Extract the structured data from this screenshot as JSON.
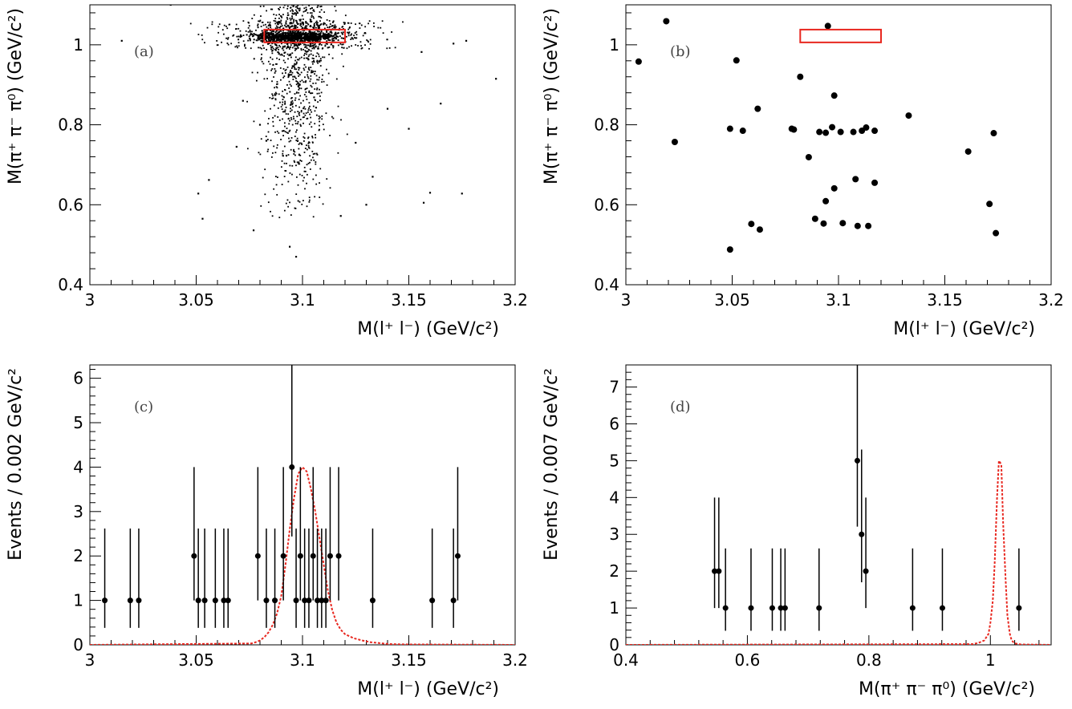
{
  "chart_data": [
    {
      "id": "a",
      "type": "scatter",
      "panel_label": "(a)",
      "xlabel": "M(l⁺ l⁻) (GeV/c²)",
      "ylabel": "M(π⁺ π⁻ π⁰) (GeV/c²)",
      "xlim": [
        3.0,
        3.2
      ],
      "ylim": [
        0.4,
        1.1
      ],
      "xticks": [
        "3",
        "3.05",
        "3.1",
        "3.15",
        "3.2"
      ],
      "yticks": [
        "0.4",
        "0.6",
        "0.8",
        "1"
      ],
      "signal_box": {
        "x": [
          3.082,
          3.12
        ],
        "y": [
          1.006,
          1.038
        ],
        "color": "#e8271f"
      },
      "scatter_description": "dense band of events around M(l+l-) ~ 3.097 and M(3pi) ~ 1.02 plus vertical band down to 0.47",
      "dense_core": {
        "x_center": 3.097,
        "x_sigma": 0.008,
        "y_range": [
          0.56,
          1.1
        ],
        "horizontal_band_y": [
          0.99,
          1.06
        ],
        "horizontal_band_x": [
          3.04,
          3.16
        ]
      },
      "sparse_points": [
        {
          "x": 3.038,
          "y": 1.1
        },
        {
          "x": 3.015,
          "y": 1.01
        },
        {
          "x": 3.191,
          "y": 0.915
        },
        {
          "x": 3.072,
          "y": 0.86
        },
        {
          "x": 3.08,
          "y": 0.8
        },
        {
          "x": 3.083,
          "y": 0.76
        },
        {
          "x": 3.069,
          "y": 0.745
        },
        {
          "x": 3.051,
          "y": 0.628
        },
        {
          "x": 3.053,
          "y": 0.565
        },
        {
          "x": 3.056,
          "y": 0.662
        },
        {
          "x": 3.077,
          "y": 0.536
        },
        {
          "x": 3.094,
          "y": 0.495
        },
        {
          "x": 3.097,
          "y": 0.47
        },
        {
          "x": 3.157,
          "y": 0.605
        },
        {
          "x": 3.16,
          "y": 0.63
        },
        {
          "x": 3.175,
          "y": 0.628
        },
        {
          "x": 3.165,
          "y": 0.853
        },
        {
          "x": 3.14,
          "y": 0.84
        },
        {
          "x": 3.15,
          "y": 0.79
        },
        {
          "x": 3.177,
          "y": 1.01
        },
        {
          "x": 3.171,
          "y": 1.003
        },
        {
          "x": 3.156,
          "y": 0.982
        },
        {
          "x": 3.13,
          "y": 0.6
        },
        {
          "x": 3.118,
          "y": 0.572
        },
        {
          "x": 3.125,
          "y": 0.755
        },
        {
          "x": 3.133,
          "y": 0.67
        }
      ]
    },
    {
      "id": "b",
      "type": "scatter",
      "panel_label": "(b)",
      "xlabel": "M(l⁺ l⁻) (GeV/c²)",
      "ylabel": "M(π⁺ π⁻ π⁰) (GeV/c²)",
      "xlim": [
        3.0,
        3.2
      ],
      "ylim": [
        0.4,
        1.1
      ],
      "xticks": [
        "3",
        "3.05",
        "3.1",
        "3.15",
        "3.2"
      ],
      "yticks": [
        "0.4",
        "0.6",
        "0.8",
        "1"
      ],
      "signal_box": {
        "x": [
          3.082,
          3.12
        ],
        "y": [
          1.006,
          1.038
        ],
        "color": "#e8271f"
      },
      "points": [
        {
          "x": 3.006,
          "y": 0.958
        },
        {
          "x": 3.019,
          "y": 1.059
        },
        {
          "x": 3.023,
          "y": 0.757
        },
        {
          "x": 3.049,
          "y": 0.488
        },
        {
          "x": 3.049,
          "y": 0.79
        },
        {
          "x": 3.052,
          "y": 0.961
        },
        {
          "x": 3.055,
          "y": 0.785
        },
        {
          "x": 3.059,
          "y": 0.552
        },
        {
          "x": 3.062,
          "y": 0.84
        },
        {
          "x": 3.063,
          "y": 0.538
        },
        {
          "x": 3.078,
          "y": 0.79
        },
        {
          "x": 3.079,
          "y": 0.788
        },
        {
          "x": 3.082,
          "y": 0.92
        },
        {
          "x": 3.086,
          "y": 0.719
        },
        {
          "x": 3.089,
          "y": 0.565
        },
        {
          "x": 3.091,
          "y": 0.782
        },
        {
          "x": 3.093,
          "y": 0.553
        },
        {
          "x": 3.094,
          "y": 0.78
        },
        {
          "x": 3.094,
          "y": 0.609
        },
        {
          "x": 3.095,
          "y": 1.047
        },
        {
          "x": 3.097,
          "y": 0.794
        },
        {
          "x": 3.098,
          "y": 0.641
        },
        {
          "x": 3.098,
          "y": 0.873
        },
        {
          "x": 3.101,
          "y": 0.782
        },
        {
          "x": 3.102,
          "y": 0.554
        },
        {
          "x": 3.107,
          "y": 0.782
        },
        {
          "x": 3.108,
          "y": 0.664
        },
        {
          "x": 3.109,
          "y": 0.547
        },
        {
          "x": 3.111,
          "y": 0.785
        },
        {
          "x": 3.113,
          "y": 0.793
        },
        {
          "x": 3.114,
          "y": 0.547
        },
        {
          "x": 3.117,
          "y": 0.785
        },
        {
          "x": 3.117,
          "y": 0.655
        },
        {
          "x": 3.133,
          "y": 0.823
        },
        {
          "x": 3.161,
          "y": 0.733
        },
        {
          "x": 3.171,
          "y": 0.602
        },
        {
          "x": 3.173,
          "y": 0.779
        },
        {
          "x": 3.174,
          "y": 0.529
        }
      ]
    },
    {
      "id": "c",
      "type": "errorbar",
      "panel_label": "(c)",
      "xlabel": "M(l⁺ l⁻) (GeV/c²)",
      "ylabel": "Events / 0.002 GeV/c²",
      "xlim": [
        3.0,
        3.2
      ],
      "ylim": [
        0,
        6.3
      ],
      "xticks": [
        "3",
        "3.05",
        "3.1",
        "3.15",
        "3.2"
      ],
      "yticks": [
        "0",
        "1",
        "2",
        "3",
        "4",
        "5",
        "6"
      ],
      "bin_width": 0.002,
      "points": [
        {
          "x": 3.007,
          "y": 1
        },
        {
          "x": 3.019,
          "y": 1
        },
        {
          "x": 3.023,
          "y": 1
        },
        {
          "x": 3.049,
          "y": 2
        },
        {
          "x": 3.051,
          "y": 1
        },
        {
          "x": 3.054,
          "y": 1
        },
        {
          "x": 3.059,
          "y": 1
        },
        {
          "x": 3.063,
          "y": 1
        },
        {
          "x": 3.065,
          "y": 1
        },
        {
          "x": 3.079,
          "y": 2
        },
        {
          "x": 3.083,
          "y": 1
        },
        {
          "x": 3.087,
          "y": 1
        },
        {
          "x": 3.091,
          "y": 2
        },
        {
          "x": 3.095,
          "y": 4
        },
        {
          "x": 3.097,
          "y": 1
        },
        {
          "x": 3.099,
          "y": 2
        },
        {
          "x": 3.101,
          "y": 1
        },
        {
          "x": 3.103,
          "y": 1
        },
        {
          "x": 3.105,
          "y": 2
        },
        {
          "x": 3.107,
          "y": 1
        },
        {
          "x": 3.109,
          "y": 1
        },
        {
          "x": 3.111,
          "y": 1
        },
        {
          "x": 3.113,
          "y": 2
        },
        {
          "x": 3.117,
          "y": 2
        },
        {
          "x": 3.133,
          "y": 1
        },
        {
          "x": 3.161,
          "y": 1
        },
        {
          "x": 3.171,
          "y": 1
        },
        {
          "x": 3.173,
          "y": 2
        }
      ],
      "signal_shape": {
        "color": "#e8271f",
        "style": "dashed",
        "x": [
          3.0,
          3.076,
          3.078,
          3.08,
          3.082,
          3.084,
          3.086,
          3.088,
          3.09,
          3.092,
          3.094,
          3.096,
          3.098,
          3.1,
          3.102,
          3.104,
          3.106,
          3.108,
          3.11,
          3.112,
          3.114,
          3.116,
          3.118,
          3.12,
          3.124,
          3.128,
          3.132,
          3.136,
          3.14,
          3.146,
          3.2
        ],
        "y": [
          0,
          0.03,
          0.06,
          0.1,
          0.17,
          0.28,
          0.45,
          0.7,
          1.1,
          1.8,
          2.6,
          3.3,
          3.85,
          4.0,
          3.9,
          3.5,
          3.0,
          2.4,
          1.8,
          1.2,
          0.78,
          0.5,
          0.34,
          0.24,
          0.15,
          0.1,
          0.06,
          0.04,
          0.02,
          0.01,
          0
        ]
      }
    },
    {
      "id": "d",
      "type": "errorbar",
      "panel_label": "(d)",
      "xlabel": "M(π⁺ π⁻ π⁰) (GeV/c²)",
      "ylabel": "Events / 0.007 GeV/c²",
      "xlim": [
        0.4,
        1.1
      ],
      "ylim": [
        0,
        7.6
      ],
      "xticks": [
        "0.4",
        "0.6",
        "0.8",
        "1"
      ],
      "yticks": [
        "0",
        "1",
        "2",
        "3",
        "4",
        "5",
        "6",
        "7"
      ],
      "bin_width": 0.007,
      "points": [
        {
          "x": 0.546,
          "y": 2
        },
        {
          "x": 0.553,
          "y": 2
        },
        {
          "x": 0.564,
          "y": 1
        },
        {
          "x": 0.606,
          "y": 1
        },
        {
          "x": 0.641,
          "y": 1
        },
        {
          "x": 0.655,
          "y": 1
        },
        {
          "x": 0.662,
          "y": 1
        },
        {
          "x": 0.718,
          "y": 1
        },
        {
          "x": 0.781,
          "y": 5
        },
        {
          "x": 0.788,
          "y": 3
        },
        {
          "x": 0.795,
          "y": 2
        },
        {
          "x": 0.872,
          "y": 1
        },
        {
          "x": 0.921,
          "y": 1
        },
        {
          "x": 1.047,
          "y": 1
        }
      ],
      "signal_shape": {
        "color": "#e8271f",
        "style": "dashed",
        "x": [
          0.4,
          0.97,
          0.98,
          0.99,
          0.997,
          1.0,
          1.004,
          1.007,
          1.011,
          1.014,
          1.018,
          1.021,
          1.025,
          1.028,
          1.032,
          1.035,
          1.04,
          1.05,
          1.1
        ],
        "y": [
          0,
          0.02,
          0.05,
          0.12,
          0.3,
          0.6,
          1.2,
          2.2,
          4.0,
          5.0,
          4.9,
          3.3,
          1.8,
          0.8,
          0.3,
          0.12,
          0.04,
          0.01,
          0
        ]
      }
    }
  ]
}
